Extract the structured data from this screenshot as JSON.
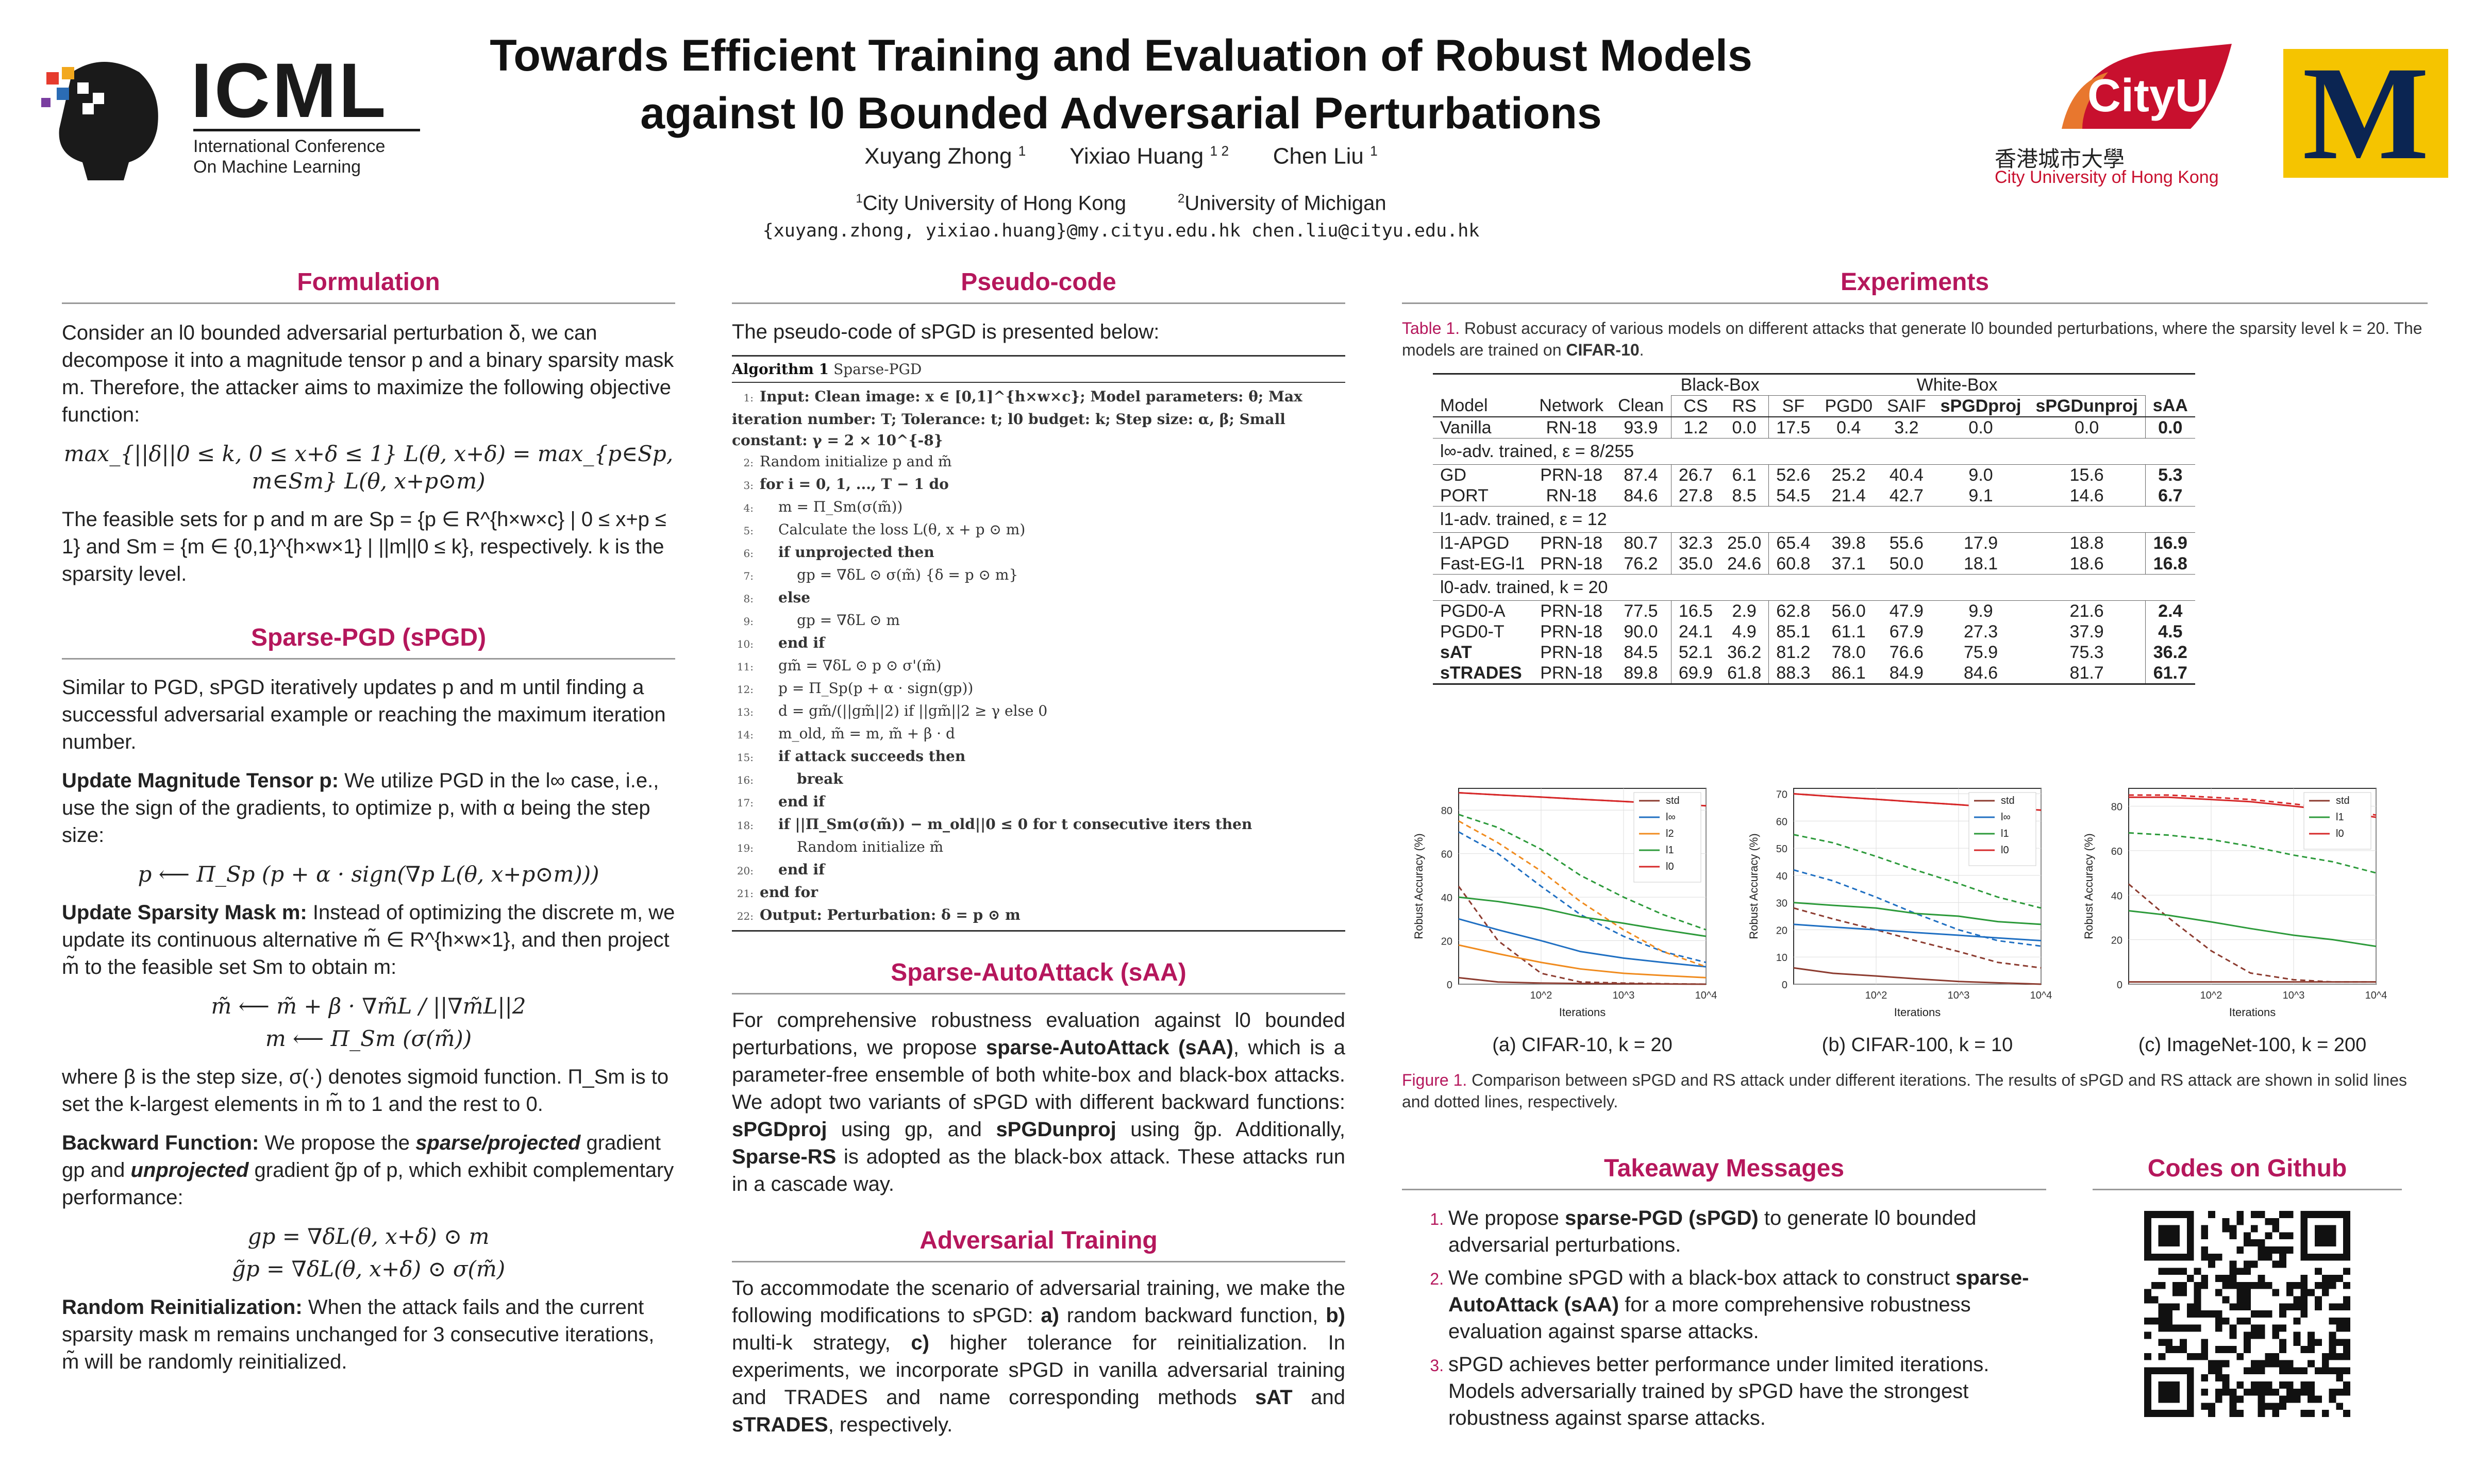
{
  "header": {
    "title_line1": "Towards Efficient Training and Evaluation of Robust Models",
    "title_line2": "against l0 Bounded Adversarial Perturbations",
    "authors": [
      "Xuyang Zhong",
      "Yixiao Huang",
      "Chen Liu"
    ],
    "author_marks": [
      "1",
      "1 2",
      "1"
    ],
    "affiliations": [
      "City University of Hong Kong",
      "University of Michigan"
    ],
    "affiliation_marks": [
      "1",
      "2"
    ],
    "emails": "{xuyang.zhong, yixiao.huang}@my.cityu.edu.hk   chen.liu@cityu.edu.hk",
    "icml_logo_text": "ICML",
    "icml_subtitle_1": "International Conference",
    "icml_subtitle_2": "On Machine Learning",
    "cityu_logo_text": "CityU",
    "cityu_chinese": "香港城市大學",
    "cityu_english": "City University of Hong Kong",
    "umich_logo_text": "M"
  },
  "colors": {
    "accent": "#b5175c",
    "umich_yellow": "#f5c400",
    "cityu_red": "#c8102e"
  },
  "formulation": {
    "heading": "Formulation",
    "p1": "Consider an l0 bounded adversarial perturbation δ, we can decompose it into a magnitude tensor p and a binary sparsity mask m. Therefore, the attacker aims to maximize the following objective function:",
    "eq1": "max_{||δ||0 ≤ k, 0 ≤ x+δ ≤ 1} L(θ, x+δ) = max_{p∈Sp, m∈Sm} L(θ, x+p⊙m)",
    "p2": "The feasible sets for p and m are Sp = {p ∈ R^{h×w×c} | 0 ≤ x+p ≤ 1} and Sm = {m ∈ {0,1}^{h×w×1} | ||m||0 ≤ k}, respectively. k is the sparsity level."
  },
  "spgd": {
    "heading": "Sparse-PGD (sPGD)",
    "p1": "Similar to PGD, sPGD iteratively updates p and m until finding a successful adversarial example or reaching the maximum iteration number.",
    "update_p_title": "Update Magnitude Tensor p:",
    "update_p_text": "We utilize PGD in the l∞ case, i.e., use the sign of the gradients, to optimize p, with α being the step size:",
    "eq_p": "p ⟵ Π_Sp (p + α · sign(∇p L(θ, x+p⊙m)))",
    "update_m_title": "Update Sparsity Mask m:",
    "update_m_text": "Instead of optimizing the discrete m, we update its continuous alternative m̃ ∈ R^{h×w×1}, and then project m̃ to the feasible set Sm to obtain m:",
    "eq_m1": "m̃ ⟵ m̃ + β · ∇m̃L / ||∇m̃L||2",
    "eq_m2": "m ⟵ Π_Sm (σ(m̃))",
    "after_m": "where β is the step size, σ(·) denotes sigmoid function. Π_Sm is to set the k-largest elements in m̃ to 1 and the rest to 0.",
    "backward_title": "Backward Function:",
    "backward_text_1": "We propose the",
    "backward_em_1": "sparse/projected",
    "backward_text_2": "gradient gp and",
    "backward_em_2": "unprojected",
    "backward_text_3": "gradient g̃p of p, which exhibit complementary performance:",
    "eq_g1": "gp = ∇δL(θ, x+δ) ⊙ m",
    "eq_g2": "g̃p = ∇δL(θ, x+δ) ⊙ σ(m̃)",
    "reinit_title": "Random Reinitialization:",
    "reinit_text": "When the attack fails and the current sparsity mask m remains unchanged for 3 consecutive iterations, m̃ will be randomly reinitialized."
  },
  "pseudocode": {
    "heading": "Pseudo-code",
    "intro": "The pseudo-code of sPGD is presented below:",
    "algo_label": "Algorithm 1",
    "algo_name": "Sparse-PGD",
    "lines": [
      "Input: Clean image: x ∈ [0,1]^{h×w×c}; Model parameters: θ; Max iteration number: T; Tolerance: t; l0 budget: k; Step size: α, β; Small constant: γ = 2 × 10^{-8}",
      "Random initialize p and m̃",
      "for i = 0, 1, ..., T − 1 do",
      "m = Π_Sm(σ(m̃))",
      "Calculate the loss L(θ, x + p ⊙ m)",
      "if unprojected then",
      "gp = ∇δL ⊙ σ(m̃)      {δ = p ⊙ m}",
      "else",
      "gp = ∇δL ⊙ m",
      "end if",
      "gm̃ = ∇δL ⊙ p ⊙ σ'(m̃)",
      "p = Π_Sp(p + α · sign(gp))",
      "d = gm̃/(||gm̃||2) if ||gm̃||2 ≥ γ else 0",
      "m_old, m̃ = m, m̃ + β · d",
      "if attack succeeds then",
      "break",
      "end if",
      "if ||Π_Sm(σ(m̃)) − m_old||0 ≤ 0 for t consecutive iters then",
      "Random initialize m̃",
      "end if",
      "end for",
      "Output: Perturbation: δ = p ⊙ m"
    ]
  },
  "saa": {
    "heading": "Sparse-AutoAttack (sAA)",
    "text_1": "For comprehensive robustness evaluation against l0 bounded perturbations, we propose",
    "strong_1": "sparse-AutoAttack (sAA)",
    "text_2": ", which is a parameter-free ensemble of both white-box and black-box attacks.  We adopt two variants of sPGD with different backward functions:",
    "strong_2": "sPGDproj",
    "text_3": "using gp, and",
    "strong_3": "sPGDunproj",
    "text_4": "using g̃p. Additionally,",
    "strong_4": "Sparse-RS",
    "text_5": "is adopted as the black-box attack. These attacks run in a cascade way."
  },
  "adv_training": {
    "heading": "Adversarial Training",
    "text_1": "To accommodate the scenario of adversarial training, we make the following modifications to sPGD:",
    "a_label": "a)",
    "a_text": "random backward function,",
    "b_label": "b)",
    "b_text": "multi-k strategy,",
    "c_label": "c)",
    "c_text": "higher tolerance for reinitialization. In experiments, we incorporate sPGD in vanilla adversarial training and TRADES and name corresponding methods",
    "sat": "sAT",
    "and": "and",
    "strades": "sTRADES",
    "end": ", respectively."
  },
  "experiments": {
    "heading": "Experiments",
    "table_caption_label": "Table 1.",
    "table_caption": "Robust accuracy of various models on different attacks that generate l0 bounded perturbations, where the sparsity level k = 20. The models are trained on",
    "table_caption_dataset": "CIFAR-10",
    "table_header_blackbox": "Black-Box",
    "table_header_whitebox": "White-Box",
    "columns": [
      "Model",
      "Network",
      "Clean",
      "CS",
      "RS",
      "SF",
      "PGD0",
      "SAIF",
      "sPGDproj",
      "sPGDunproj",
      "sAA"
    ],
    "groups": [
      {
        "title": "",
        "rows": [
          [
            "Vanilla",
            "RN-18",
            "93.9",
            "1.2",
            "0.0",
            "17.5",
            "0.4",
            "3.2",
            "0.0",
            "0.0",
            "0.0"
          ]
        ]
      },
      {
        "title": "l∞-adv. trained, ε = 8/255",
        "rows": [
          [
            "GD",
            "PRN-18",
            "87.4",
            "26.7",
            "6.1",
            "52.6",
            "25.2",
            "40.4",
            "9.0",
            "15.6",
            "5.3"
          ],
          [
            "PORT",
            "RN-18",
            "84.6",
            "27.8",
            "8.5",
            "54.5",
            "21.4",
            "42.7",
            "9.1",
            "14.6",
            "6.7"
          ]
        ]
      },
      {
        "title": "l1-adv. trained, ε = 12",
        "rows": [
          [
            "l1-APGD",
            "PRN-18",
            "80.7",
            "32.3",
            "25.0",
            "65.4",
            "39.8",
            "55.6",
            "17.9",
            "18.8",
            "16.9"
          ],
          [
            "Fast-EG-l1",
            "PRN-18",
            "76.2",
            "35.0",
            "24.6",
            "60.8",
            "37.1",
            "50.0",
            "18.1",
            "18.6",
            "16.8"
          ]
        ]
      },
      {
        "title": "l0-adv. trained, k = 20",
        "rows": [
          [
            "PGD0-A",
            "PRN-18",
            "77.5",
            "16.5",
            "2.9",
            "62.8",
            "56.0",
            "47.9",
            "9.9",
            "21.6",
            "2.4"
          ],
          [
            "PGD0-T",
            "PRN-18",
            "90.0",
            "24.1",
            "4.9",
            "85.1",
            "61.1",
            "67.9",
            "27.3",
            "37.9",
            "4.5"
          ],
          [
            "sAT",
            "PRN-18",
            "84.5",
            "52.1",
            "36.2",
            "81.2",
            "78.0",
            "76.6",
            "75.9",
            "75.3",
            "36.2"
          ],
          [
            "sTRADES",
            "PRN-18",
            "89.8",
            "69.9",
            "61.8",
            "88.3",
            "86.1",
            "84.9",
            "84.6",
            "81.7",
            "61.7"
          ]
        ]
      }
    ],
    "figure_caption_label": "Figure 1.",
    "figure_caption": "Comparison between sPGD and RS attack under different iterations. The results of sPGD and RS attack are shown in solid lines and dotted lines, respectively."
  },
  "chart_data": [
    {
      "type": "line",
      "title": "(a) CIFAR-10, k = 20",
      "xlabel": "Iterations",
      "ylabel": "Robust Accuracy (%)",
      "x": [
        10,
        30,
        100,
        300,
        1000,
        3000,
        10000
      ],
      "xscale": "log",
      "xticks": [
        "10^2",
        "10^3",
        "10^4"
      ],
      "yticks": [
        0,
        20,
        40,
        60,
        80
      ],
      "ylim": [
        0,
        90
      ],
      "legend": [
        "std",
        "l∞",
        "l2",
        "l1",
        "l0"
      ],
      "series": [
        {
          "name": "std sPGD",
          "color": "#8c3b2f",
          "dash": false,
          "values": [
            3,
            1,
            0.5,
            0.3,
            0.2,
            0.1,
            0
          ]
        },
        {
          "name": "std RS",
          "color": "#8c3b2f",
          "dash": true,
          "values": [
            45,
            20,
            5,
            1,
            0.5,
            0.2,
            0
          ]
        },
        {
          "name": "l∞ sPGD",
          "color": "#1f6fc2",
          "dash": false,
          "values": [
            30,
            25,
            20,
            15,
            12,
            10,
            8
          ]
        },
        {
          "name": "l∞ RS",
          "color": "#1f6fc2",
          "dash": true,
          "values": [
            70,
            60,
            45,
            32,
            22,
            15,
            10
          ]
        },
        {
          "name": "l2 sPGD",
          "color": "#f08b1e",
          "dash": false,
          "values": [
            18,
            14,
            10,
            7,
            5,
            4,
            3
          ]
        },
        {
          "name": "l2 RS",
          "color": "#f08b1e",
          "dash": true,
          "values": [
            75,
            65,
            52,
            38,
            25,
            15,
            8
          ]
        },
        {
          "name": "l1 sPGD",
          "color": "#2c9a3a",
          "dash": false,
          "values": [
            40,
            38,
            35,
            31,
            28,
            25,
            22
          ]
        },
        {
          "name": "l1 RS",
          "color": "#2c9a3a",
          "dash": true,
          "values": [
            78,
            72,
            62,
            50,
            40,
            32,
            25
          ]
        },
        {
          "name": "l0 sPGD",
          "color": "#d62728",
          "dash": false,
          "values": [
            88,
            87,
            86,
            85,
            84,
            83,
            82
          ]
        },
        {
          "name": "l0 RS",
          "color": "#d62728",
          "dash": true,
          "values": [
            88,
            87,
            86,
            85,
            84,
            83,
            82
          ]
        }
      ]
    },
    {
      "type": "line",
      "title": "(b) CIFAR-100, k = 10",
      "xlabel": "Iterations",
      "ylabel": "Robust Accuracy (%)",
      "x": [
        10,
        30,
        100,
        300,
        1000,
        3000,
        10000
      ],
      "xscale": "log",
      "xticks": [
        "10^2",
        "10^3",
        "10^4"
      ],
      "yticks": [
        0,
        10,
        20,
        30,
        40,
        50,
        60,
        70
      ],
      "ylim": [
        0,
        72
      ],
      "legend": [
        "std",
        "l∞",
        "l1",
        "l0"
      ],
      "series": [
        {
          "name": "std sPGD",
          "color": "#8c3b2f",
          "dash": false,
          "values": [
            6,
            4,
            3,
            2,
            1,
            0.5,
            0
          ]
        },
        {
          "name": "std RS",
          "color": "#8c3b2f",
          "dash": true,
          "values": [
            28,
            24,
            20,
            16,
            12,
            8,
            6
          ]
        },
        {
          "name": "l∞ sPGD",
          "color": "#1f6fc2",
          "dash": false,
          "values": [
            22,
            21,
            20,
            19,
            18,
            17,
            16
          ]
        },
        {
          "name": "l∞ RS",
          "color": "#1f6fc2",
          "dash": true,
          "values": [
            42,
            38,
            32,
            26,
            20,
            16,
            14
          ]
        },
        {
          "name": "l1 sPGD",
          "color": "#2c9a3a",
          "dash": false,
          "values": [
            30,
            29,
            28,
            26,
            25,
            23,
            22
          ]
        },
        {
          "name": "l1 RS",
          "color": "#2c9a3a",
          "dash": true,
          "values": [
            55,
            52,
            47,
            42,
            37,
            32,
            28
          ]
        },
        {
          "name": "l0 sPGD",
          "color": "#d62728",
          "dash": false,
          "values": [
            70,
            69,
            68,
            67,
            66,
            65,
            64
          ]
        },
        {
          "name": "l0 RS",
          "color": "#d62728",
          "dash": true,
          "values": [
            70,
            69,
            68,
            67,
            66,
            65,
            64
          ]
        }
      ]
    },
    {
      "type": "line",
      "title": "(c) ImageNet-100, k = 200",
      "xlabel": "Iterations",
      "ylabel": "Robust Accuracy (%)",
      "x": [
        10,
        30,
        100,
        300,
        1000,
        3000,
        10000
      ],
      "xscale": "log",
      "xticks": [
        "10^2",
        "10^3",
        "10^4"
      ],
      "yticks": [
        0,
        20,
        40,
        60,
        80
      ],
      "ylim": [
        0,
        88
      ],
      "legend": [
        "std",
        "l1",
        "l0"
      ],
      "series": [
        {
          "name": "std sPGD",
          "color": "#8c3b2f",
          "dash": false,
          "values": [
            1,
            1,
            1,
            1,
            1,
            1,
            1
          ]
        },
        {
          "name": "std RS",
          "color": "#8c3b2f",
          "dash": true,
          "values": [
            45,
            30,
            15,
            5,
            2,
            1,
            1
          ]
        },
        {
          "name": "l1 sPGD",
          "color": "#2c9a3a",
          "dash": false,
          "values": [
            33,
            31,
            28,
            25,
            22,
            20,
            17
          ]
        },
        {
          "name": "l1 RS",
          "color": "#2c9a3a",
          "dash": true,
          "values": [
            68,
            67,
            65,
            62,
            58,
            55,
            50
          ]
        },
        {
          "name": "l0 sPGD",
          "color": "#d62728",
          "dash": false,
          "values": [
            84,
            84,
            83,
            82,
            80,
            78,
            75
          ]
        },
        {
          "name": "l0 RS",
          "color": "#d62728",
          "dash": true,
          "values": [
            85,
            85,
            84,
            83,
            81,
            79,
            76
          ]
        }
      ]
    }
  ],
  "takeaway": {
    "heading": "Takeaway Messages",
    "items": [
      {
        "pre": "We propose",
        "strong": "sparse-PGD (sPGD)",
        "post": "to generate l0 bounded adversarial perturbations."
      },
      {
        "pre": "We combine sPGD with a black-box attack to construct",
        "strong": "sparse-AutoAttack (sAA)",
        "post": "for a more comprehensive robustness evaluation against sparse attacks."
      },
      {
        "pre": "sPGD achieves better performance under limited iterations. Models adversarially trained by sPGD have the strongest robustness against sparse attacks.",
        "strong": "",
        "post": ""
      }
    ]
  },
  "github": {
    "heading": "Codes on Github"
  }
}
